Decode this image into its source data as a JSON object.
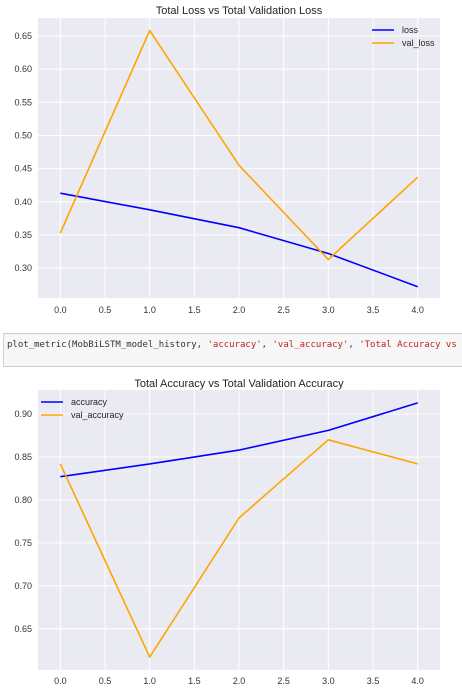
{
  "code_cell": {
    "parts": [
      {
        "text": "plot_metric(MobBiLSTM_model_history, ",
        "kind": "plain"
      },
      {
        "text": "'accuracy'",
        "kind": "str"
      },
      {
        "text": ", ",
        "kind": "plain"
      },
      {
        "text": "'val_accuracy'",
        "kind": "str"
      },
      {
        "text": ", ",
        "kind": "plain"
      },
      {
        "text": "'Total Accuracy vs Total '",
        "kind": "str"
      }
    ]
  },
  "colors": {
    "plot_bg": "#eaeaf2",
    "grid": "#ffffff",
    "train": "#0000ff",
    "val": "#ffa500"
  },
  "chart_data": [
    {
      "type": "line",
      "title": "Total Loss vs Total Validation Loss",
      "xlabel": "",
      "ylabel": "",
      "x": [
        0,
        1,
        2,
        3,
        4
      ],
      "xticks": [
        0.0,
        0.5,
        1.0,
        1.5,
        2.0,
        2.5,
        3.0,
        3.5,
        4.0
      ],
      "xtick_labels": [
        "0.0",
        "0.5",
        "1.0",
        "1.5",
        "2.0",
        "2.5",
        "3.0",
        "3.5",
        "4.0"
      ],
      "xlim": [
        -0.25,
        4.25
      ],
      "yticks": [
        0.3,
        0.35,
        0.4,
        0.45,
        0.5,
        0.55,
        0.6,
        0.65
      ],
      "ytick_labels": [
        "0.30",
        "0.35",
        "0.40",
        "0.45",
        "0.50",
        "0.55",
        "0.60",
        "0.65"
      ],
      "ylim": [
        0.255,
        0.677
      ],
      "grid": true,
      "legend_position": "top-right",
      "series": [
        {
          "name": "loss",
          "color": "#0000ff",
          "values": [
            0.413,
            0.388,
            0.361,
            0.322,
            0.272
          ]
        },
        {
          "name": "val_loss",
          "color": "#ffa500",
          "values": [
            0.353,
            0.658,
            0.455,
            0.313,
            0.437
          ]
        }
      ]
    },
    {
      "type": "line",
      "title": "Total Accuracy vs Total Validation Accuracy",
      "xlabel": "",
      "ylabel": "",
      "x": [
        0,
        1,
        2,
        3,
        4
      ],
      "xticks": [
        0.0,
        0.5,
        1.0,
        1.5,
        2.0,
        2.5,
        3.0,
        3.5,
        4.0
      ],
      "xtick_labels": [
        "0.0",
        "0.5",
        "1.0",
        "1.5",
        "2.0",
        "2.5",
        "3.0",
        "3.5",
        "4.0"
      ],
      "xlim": [
        -0.25,
        4.25
      ],
      "yticks": [
        0.65,
        0.7,
        0.75,
        0.8,
        0.85,
        0.9
      ],
      "ytick_labels": [
        "0.65",
        "0.70",
        "0.75",
        "0.80",
        "0.85",
        "0.90"
      ],
      "ylim": [
        0.602,
        0.928
      ],
      "grid": true,
      "legend_position": "top-left",
      "series": [
        {
          "name": "accuracy",
          "color": "#0000ff",
          "values": [
            0.827,
            0.842,
            0.858,
            0.881,
            0.913
          ]
        },
        {
          "name": "val_accuracy",
          "color": "#ffa500",
          "values": [
            0.842,
            0.617,
            0.779,
            0.87,
            0.842
          ]
        }
      ]
    }
  ]
}
